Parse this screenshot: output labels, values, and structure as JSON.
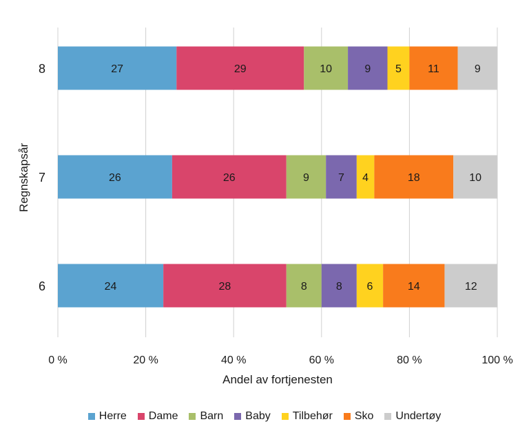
{
  "chart_data": {
    "type": "bar",
    "orientation": "horizontal",
    "stacked": "percent",
    "title": "",
    "xlabel": "Andel av fortjenesten",
    "ylabel": "Regnskapsår",
    "categories": [
      "8",
      "7",
      "6"
    ],
    "xlim": [
      0,
      100
    ],
    "x_ticks": [
      "0 %",
      "20 %",
      "40 %",
      "60 %",
      "80 %",
      "100 %"
    ],
    "grid": "vertical",
    "legend_position": "bottom",
    "series": [
      {
        "name": "Herre",
        "color": "#5ba3d0",
        "values": [
          27,
          26,
          24
        ]
      },
      {
        "name": "Dame",
        "color": "#d9456b",
        "values": [
          29,
          26,
          28
        ]
      },
      {
        "name": "Barn",
        "color": "#a9bf6a",
        "values": [
          10,
          9,
          8
        ]
      },
      {
        "name": "Baby",
        "color": "#7b68ae",
        "values": [
          9,
          7,
          8
        ]
      },
      {
        "name": "Tilbehør",
        "color": "#ffd21f",
        "values": [
          5,
          4,
          6
        ]
      },
      {
        "name": "Sko",
        "color": "#f97b1c",
        "values": [
          11,
          18,
          14
        ]
      },
      {
        "name": "Undertøy",
        "color": "#cccccc",
        "values": [
          9,
          10,
          12
        ]
      }
    ]
  }
}
